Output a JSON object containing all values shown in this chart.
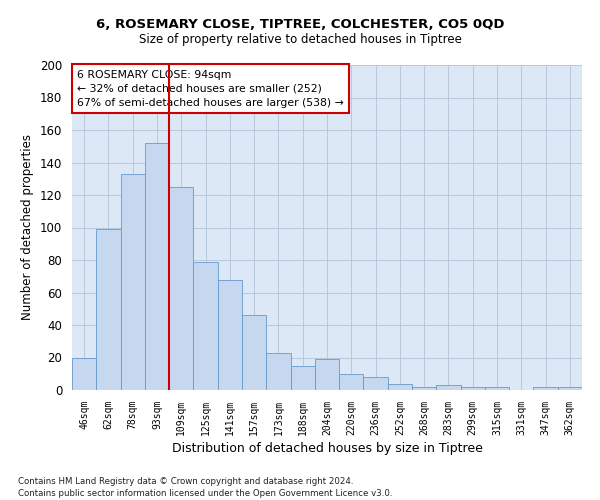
{
  "title1": "6, ROSEMARY CLOSE, TIPTREE, COLCHESTER, CO5 0QD",
  "title2": "Size of property relative to detached houses in Tiptree",
  "xlabel": "Distribution of detached houses by size in Tiptree",
  "ylabel": "Number of detached properties",
  "categories": [
    "46sqm",
    "62sqm",
    "78sqm",
    "93sqm",
    "109sqm",
    "125sqm",
    "141sqm",
    "157sqm",
    "173sqm",
    "188sqm",
    "204sqm",
    "220sqm",
    "236sqm",
    "252sqm",
    "268sqm",
    "283sqm",
    "299sqm",
    "315sqm",
    "331sqm",
    "347sqm",
    "362sqm"
  ],
  "values": [
    20,
    99,
    133,
    152,
    125,
    79,
    68,
    46,
    23,
    15,
    19,
    10,
    8,
    4,
    2,
    3,
    2,
    2,
    0,
    2,
    2
  ],
  "bar_color": "#c5d8ef",
  "bar_edge_color": "#6699cc",
  "grid_color": "#b0c4d8",
  "bg_color": "#dce8f5",
  "vline_x": 3.5,
  "vline_color": "#cc0000",
  "annotation_text": "6 ROSEMARY CLOSE: 94sqm\n← 32% of detached houses are smaller (252)\n67% of semi-detached houses are larger (538) →",
  "annotation_box_color": "#cc0000",
  "footer": "Contains HM Land Registry data © Crown copyright and database right 2024.\nContains public sector information licensed under the Open Government Licence v3.0.",
  "ylim": [
    0,
    200
  ],
  "yticks": [
    0,
    20,
    40,
    60,
    80,
    100,
    120,
    140,
    160,
    180,
    200
  ]
}
